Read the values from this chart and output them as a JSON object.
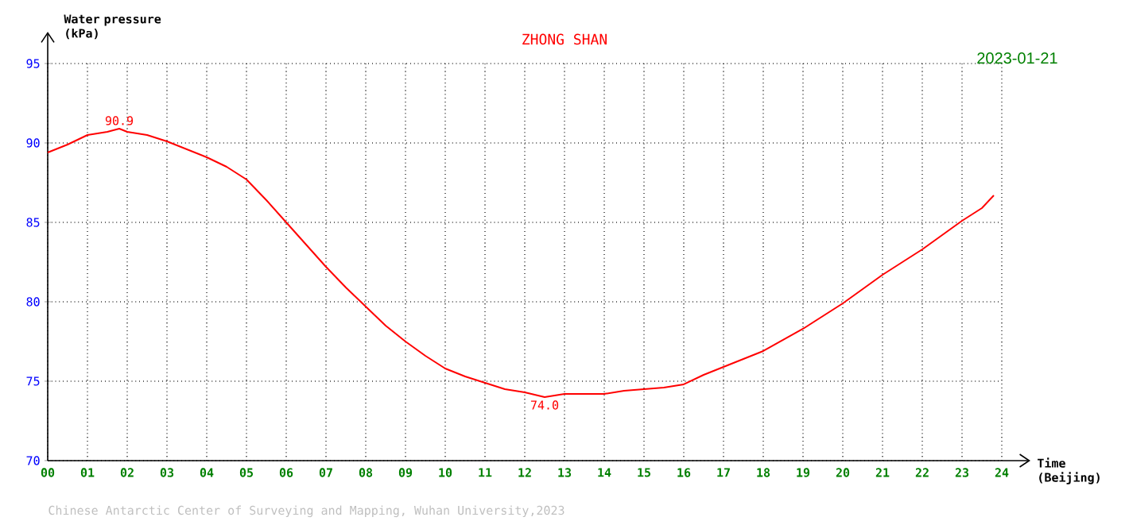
{
  "chart_data": {
    "type": "line",
    "title": "ZHONG SHAN",
    "subtitle": "2023-01-21",
    "xlabel": "Time (Beijing)",
    "ylabel": "Water pressure (kPa)",
    "x": [
      0,
      0.5,
      1,
      1.5,
      1.8,
      2,
      2.5,
      3,
      3.5,
      4,
      4.5,
      5,
      5.5,
      6,
      6.5,
      7,
      7.5,
      8,
      8.5,
      9,
      9.5,
      10,
      10.5,
      11,
      11.5,
      12,
      12.5,
      13,
      13.5,
      14,
      14.5,
      15,
      15.5,
      16,
      16.5,
      17,
      17.5,
      18,
      18.5,
      19,
      19.5,
      20,
      20.5,
      21,
      21.5,
      22,
      22.5,
      23,
      23.5,
      23.8
    ],
    "series": [
      {
        "color": "#ff0000",
        "values": [
          89.4,
          89.9,
          90.5,
          90.7,
          90.9,
          90.7,
          90.5,
          90.1,
          89.6,
          89.1,
          88.5,
          87.7,
          86.4,
          85.0,
          83.6,
          82.2,
          80.9,
          79.7,
          78.5,
          77.5,
          76.6,
          75.8,
          75.3,
          74.9,
          74.5,
          74.3,
          74.0,
          74.2,
          74.2,
          74.2,
          74.4,
          74.5,
          74.6,
          74.8,
          75.4,
          75.9,
          76.4,
          76.9,
          77.6,
          78.3,
          79.1,
          79.9,
          80.8,
          81.7,
          82.5,
          83.3,
          84.2,
          85.1,
          85.9,
          86.7
        ]
      }
    ],
    "xlim": [
      0,
      24
    ],
    "ylim": [
      70,
      95
    ],
    "xticks": [
      {
        "value": 0,
        "label": "00"
      },
      {
        "value": 1,
        "label": "01"
      },
      {
        "value": 2,
        "label": "02"
      },
      {
        "value": 3,
        "label": "03"
      },
      {
        "value": 4,
        "label": "04"
      },
      {
        "value": 5,
        "label": "05"
      },
      {
        "value": 6,
        "label": "06"
      },
      {
        "value": 7,
        "label": "07"
      },
      {
        "value": 8,
        "label": "08"
      },
      {
        "value": 9,
        "label": "09"
      },
      10,
      11,
      12,
      13,
      14,
      15,
      16,
      17,
      18,
      19,
      20,
      21,
      22,
      23,
      24
    ],
    "yticks": [
      70,
      75,
      80,
      85,
      90,
      95
    ],
    "grid": true,
    "marker": "none",
    "line_style": "solid",
    "annotations": [
      {
        "text": "90.9",
        "x": 1.8,
        "y": 90.9
      },
      {
        "text": "74.0",
        "x": 12.5,
        "y": 74.0
      },
      "Chinese Antarctic Center of Surveying and Mapping, Wuhan University,2023"
    ]
  }
}
